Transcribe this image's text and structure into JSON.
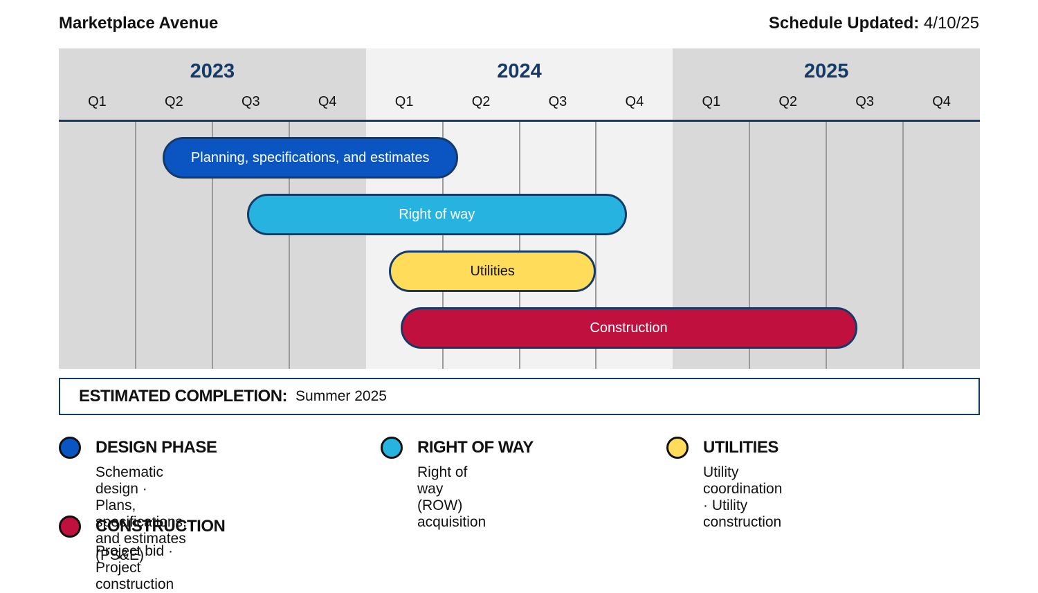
{
  "header": {
    "project_name": "Marketplace Avenue",
    "updated_label": "Schedule Updated:",
    "updated_date": "4/10/25"
  },
  "colors": {
    "navy": "#163a68",
    "design": "#0a55c2",
    "right_of_way": "#27b3e0",
    "utilities": "#ffdd5b",
    "construction": "#c0103e"
  },
  "chart_data": {
    "type": "gantt",
    "years": [
      "2023",
      "2024",
      "2025"
    ],
    "quarters": [
      "Q1",
      "Q2",
      "Q3",
      "Q4"
    ],
    "time_unit": "quarter index from start of 2023",
    "xlim": [
      0,
      12
    ],
    "tasks": [
      {
        "label": "Planning, specifications, and estimates",
        "start": 1.35,
        "end": 5.2,
        "color": "#0a55c2",
        "text_color": "#ffffff"
      },
      {
        "label": "Right of way",
        "start": 2.45,
        "end": 7.4,
        "color": "#27b3e0",
        "text_color": "#ffffff"
      },
      {
        "label": "Utilities",
        "start": 4.3,
        "end": 7.0,
        "color": "#ffdd5b",
        "text_color": "#111111"
      },
      {
        "label": "Construction",
        "start": 4.45,
        "end": 10.4,
        "color": "#c0103e",
        "text_color": "#ffffff"
      }
    ]
  },
  "completion": {
    "label": "ESTIMATED COMPLETION:",
    "value": "Summer 2025"
  },
  "legend": [
    {
      "title": "DESIGN PHASE",
      "desc": "Schematic design   ·   Plans,\nspecifications,  and estimates (PS&E)",
      "color": "#0a55c2"
    },
    {
      "title": "RIGHT OF WAY",
      "desc": "Right of way (ROW) acquisition",
      "color": "#27b3e0"
    },
    {
      "title": "UTILITIES",
      "desc": "Utility coordination · Utility construction",
      "color": "#ffdd5b"
    },
    {
      "title": "CONSTRUCTION",
      "desc": "Project bid   ·   Project construction",
      "color": "#c0103e"
    }
  ]
}
